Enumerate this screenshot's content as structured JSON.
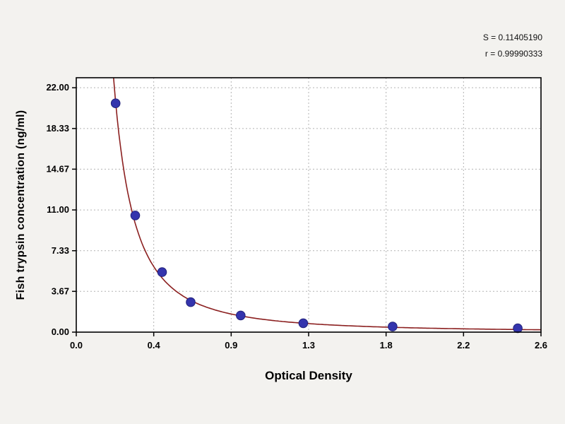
{
  "annotations": {
    "s": "S = 0.11405190",
    "r": "r = 0.99990333"
  },
  "colors": {
    "page_bg": "#f3f2ef",
    "plot_bg": "#ffffff",
    "grid": "#b3b3b3",
    "axis": "#000000",
    "marker": "#3434ad",
    "marker_edge": "#22227a",
    "curve": "#8b1f1f"
  },
  "chart_data": {
    "type": "scatter",
    "title": "",
    "xlabel": "Optical Density",
    "ylabel": "Fish trypsin concentration (ng/ml)",
    "x_ticks": [
      "0.0",
      "0.4",
      "0.9",
      "1.3",
      "1.8",
      "2.2",
      "2.6"
    ],
    "x_range": [
      0,
      2.6
    ],
    "y_ticks": [
      "0.00",
      "3.67",
      "7.33",
      "11.00",
      "14.67",
      "18.33",
      "22.00"
    ],
    "y_tick_values": [
      0,
      3.67,
      7.33,
      11.0,
      14.67,
      18.33,
      22.0
    ],
    "y_range": [
      0,
      22.9
    ],
    "grid": true,
    "legend": "none",
    "points": [
      {
        "x": 0.22,
        "y": 20.6
      },
      {
        "x": 0.33,
        "y": 10.5
      },
      {
        "x": 0.48,
        "y": 5.4
      },
      {
        "x": 0.64,
        "y": 2.7
      },
      {
        "x": 0.92,
        "y": 1.5
      },
      {
        "x": 1.27,
        "y": 0.8
      },
      {
        "x": 1.77,
        "y": 0.5
      },
      {
        "x": 2.47,
        "y": 0.35
      }
    ],
    "fit": {
      "type": "power",
      "coefficient": 1.25,
      "exponent": -1.855
    }
  }
}
